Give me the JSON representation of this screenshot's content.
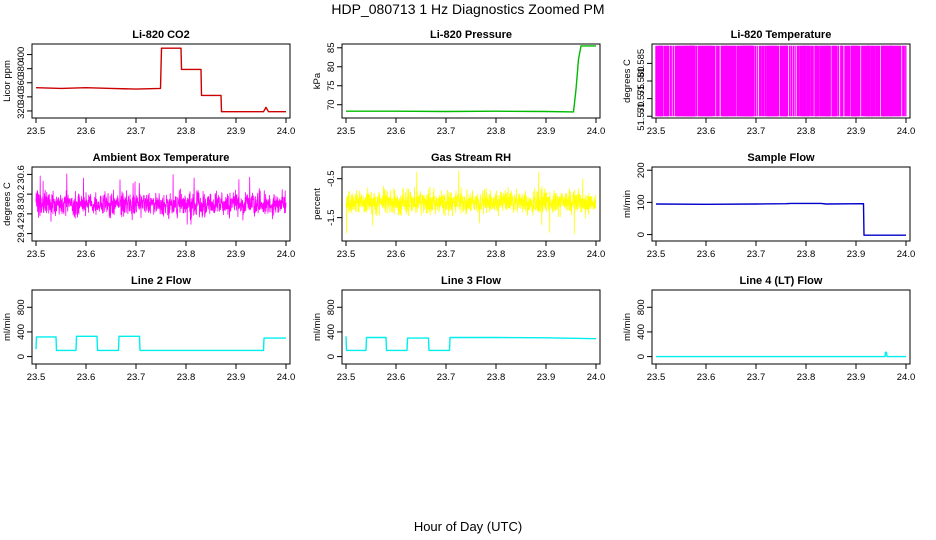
{
  "figure": {
    "title": "HDP_080713  1 Hz Diagnostics Zoomed PM",
    "xlabel": "Hour of Day (UTC)"
  },
  "chart_data": [
    {
      "type": "line",
      "title": "Li-820 CO2",
      "ylabel": "Licor ppm",
      "color": "#cc0000",
      "xlim": [
        23.5,
        24.0
      ],
      "xticks": [
        "23.5",
        "23.6",
        "23.7",
        "23.8",
        "23.9",
        "24.0"
      ],
      "ylim": [
        310,
        415
      ],
      "yticks": [
        "320",
        "340",
        "360",
        "380",
        "400"
      ],
      "series": [
        {
          "x": [
            23.5,
            23.55,
            23.6,
            23.65,
            23.7,
            23.749,
            23.751,
            23.79,
            23.791,
            23.83,
            23.831,
            23.87,
            23.871,
            23.955,
            23.96,
            23.965,
            24.0
          ],
          "y": [
            353,
            352,
            353,
            352,
            351,
            352,
            409,
            409,
            379,
            379,
            342,
            342,
            319,
            319,
            325,
            319,
            319
          ]
        }
      ]
    },
    {
      "type": "line",
      "title": "Li-820 Pressure",
      "ylabel": "kPa",
      "color": "#00bb00",
      "xlim": [
        23.5,
        24.0
      ],
      "xticks": [
        "23.5",
        "23.6",
        "23.7",
        "23.8",
        "23.9",
        "24.0"
      ],
      "ylim": [
        66.5,
        86
      ],
      "yticks": [
        "70",
        "75",
        "80",
        "85"
      ],
      "series": [
        {
          "x": [
            23.5,
            23.6,
            23.7,
            23.8,
            23.9,
            23.955,
            23.96,
            23.965,
            23.97,
            24.0
          ],
          "y": [
            68.3,
            68.3,
            68.2,
            68.3,
            68.2,
            68.1,
            74,
            82,
            85.5,
            85.5
          ]
        }
      ]
    },
    {
      "type": "line",
      "title": "Li-820 Temperature",
      "ylabel": "degrees C",
      "color": "#ff00ff",
      "xlim": [
        23.5,
        24.0
      ],
      "xticks": [
        "23.5",
        "23.6",
        "23.7",
        "23.8",
        "23.9",
        "24.0"
      ],
      "ylim": [
        51.5695,
        51.5905
      ],
      "yticks": [
        "51.570",
        "51.575",
        "51.580",
        "51.585"
      ],
      "series": [
        {
          "pattern": "alternating",
          "low": 51.57,
          "high": 51.59
        }
      ]
    },
    {
      "type": "line",
      "title": "Ambient Box Temperature",
      "ylabel": "degrees C",
      "color": "#ff00ff",
      "xlim": [
        23.5,
        24.0
      ],
      "xticks": [
        "23.5",
        "23.6",
        "23.7",
        "23.8",
        "23.9",
        "24.0"
      ],
      "ylim": [
        29.25,
        30.75
      ],
      "yticks": [
        "29.4",
        "29.8",
        "30.2",
        "30.6"
      ],
      "series": [
        {
          "pattern": "noise",
          "center": 30.0,
          "spread": 0.35,
          "max_spread": 0.65
        }
      ]
    },
    {
      "type": "line",
      "title": "Gas Stream RH",
      "ylabel": "percent",
      "color": "#ffff00",
      "xlim": [
        23.5,
        24.0
      ],
      "xticks": [
        "23.5",
        "23.6",
        "23.7",
        "23.8",
        "23.9",
        "24.0"
      ],
      "ylim": [
        -2.1,
        -0.2
      ],
      "yticks": [
        "-1.5",
        "-0.5"
      ],
      "series": [
        {
          "pattern": "noise",
          "center": -1.1,
          "spread": 0.45,
          "max_spread": 0.85
        }
      ]
    },
    {
      "type": "line",
      "title": "Sample Flow",
      "ylabel": "ml/min",
      "color": "#0000cc",
      "xlim": [
        23.5,
        24.0
      ],
      "xticks": [
        "23.5",
        "23.6",
        "23.7",
        "23.8",
        "23.9",
        "24.0"
      ],
      "ylim": [
        -20,
        210
      ],
      "yticks": [
        "0",
        "100",
        "200"
      ],
      "series": [
        {
          "x": [
            23.5,
            23.6,
            23.7,
            23.76,
            23.77,
            23.83,
            23.84,
            23.915,
            23.916,
            24.0
          ],
          "y": [
            95,
            94,
            95,
            96,
            97,
            97,
            95,
            96,
            -2,
            -2
          ]
        }
      ]
    },
    {
      "type": "line",
      "title": "Line 2 Flow",
      "ylabel": "ml/min",
      "color": "#00eeee",
      "xlim": [
        23.5,
        24.0
      ],
      "xticks": [
        "23.5",
        "23.6",
        "23.7",
        "23.8",
        "23.9",
        "24.0"
      ],
      "ylim": [
        -120,
        1080
      ],
      "yticks": [
        "0",
        "400",
        "800"
      ],
      "series": [
        {
          "x": [
            23.5,
            23.501,
            23.54,
            23.541,
            23.58,
            23.581,
            23.622,
            23.623,
            23.665,
            23.666,
            23.707,
            23.708,
            23.955,
            23.956,
            24.0
          ],
          "y": [
            120,
            320,
            320,
            100,
            100,
            330,
            330,
            100,
            100,
            330,
            330,
            100,
            100,
            300,
            300
          ]
        }
      ]
    },
    {
      "type": "line",
      "title": "Line 3 Flow",
      "ylabel": "ml/min",
      "color": "#00eeee",
      "xlim": [
        23.5,
        24.0
      ],
      "xticks": [
        "23.5",
        "23.6",
        "23.7",
        "23.8",
        "23.9",
        "24.0"
      ],
      "ylim": [
        -120,
        1080
      ],
      "yticks": [
        "0",
        "400",
        "800"
      ],
      "series": [
        {
          "x": [
            23.5,
            23.501,
            23.502,
            23.54,
            23.541,
            23.58,
            23.581,
            23.622,
            23.623,
            23.665,
            23.666,
            23.707,
            23.708,
            23.8,
            23.9,
            24.0
          ],
          "y": [
            330,
            100,
            100,
            100,
            310,
            310,
            100,
            100,
            300,
            300,
            100,
            100,
            310,
            310,
            305,
            290
          ]
        }
      ]
    },
    {
      "type": "line",
      "title": "Line 4 (LT) Flow",
      "ylabel": "ml/min",
      "color": "#00eeee",
      "xlim": [
        23.5,
        24.0
      ],
      "xticks": [
        "23.5",
        "23.6",
        "23.7",
        "23.8",
        "23.9",
        "24.0"
      ],
      "ylim": [
        -120,
        1080
      ],
      "yticks": [
        "0",
        "400",
        "800"
      ],
      "series": [
        {
          "x": [
            23.5,
            23.7,
            23.9,
            23.958,
            23.959,
            23.961,
            23.962,
            24.0
          ],
          "y": [
            0,
            0,
            0,
            0,
            70,
            70,
            0,
            0
          ]
        }
      ]
    }
  ]
}
